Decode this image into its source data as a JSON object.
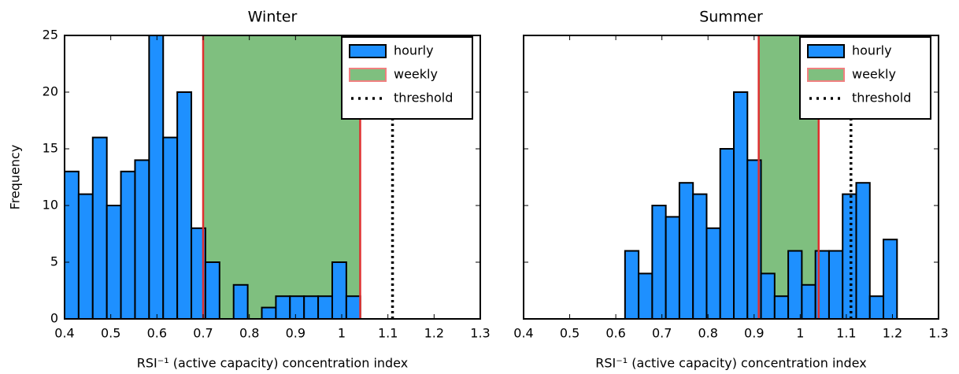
{
  "chart_data": [
    {
      "type": "histogram",
      "title": "Winter",
      "xlabel": "RSI⁻¹ (active capacity) concentration index",
      "ylabel": "Frequency",
      "bins": [
        0.4,
        0.4305,
        0.461,
        0.4915,
        0.522,
        0.5525,
        0.583,
        0.6135,
        0.644,
        0.6745,
        0.705,
        0.7355,
        0.766,
        0.7965,
        0.827,
        0.8575,
        0.888,
        0.9185,
        0.949,
        0.9795,
        1.01,
        1.0405
      ],
      "series": [
        {
          "name": "hourly",
          "color": "#1e90ff",
          "values": [
            13,
            11,
            16,
            10,
            13,
            14,
            25,
            16,
            20,
            8,
            5,
            0,
            3,
            0,
            1,
            2,
            2,
            2,
            2,
            5,
            2
          ]
        }
      ],
      "weekly": {
        "name": "weekly",
        "range": [
          0.7,
          1.04
        ],
        "color": "#7fbf7f",
        "edge_color": "#e03030"
      },
      "threshold": {
        "name": "threshold",
        "value": 1.11
      },
      "xlim": [
        0.4,
        1.3
      ],
      "xticks": [
        0.4,
        0.5,
        0.6,
        0.7,
        0.8,
        0.9,
        1.0,
        1.1,
        1.2,
        1.3
      ],
      "ylim": [
        0,
        25
      ],
      "yticks": [
        0,
        5,
        10,
        15,
        20,
        25
      ],
      "ytick_labels": true,
      "legend": "upper right"
    },
    {
      "type": "histogram",
      "title": "Summer",
      "xlabel": "RSI⁻¹ (active capacity) concentration index",
      "bins": [
        0.62,
        0.6495,
        0.679,
        0.7085,
        0.738,
        0.7675,
        0.797,
        0.8265,
        0.856,
        0.8855,
        0.915,
        0.9445,
        0.974,
        1.0035,
        1.033,
        1.0625,
        1.092,
        1.1215,
        1.151,
        1.1805,
        1.21
      ],
      "series": [
        {
          "name": "hourly",
          "color": "#1e90ff",
          "values": [
            6,
            4,
            10,
            9,
            12,
            11,
            8,
            15,
            20,
            14,
            4,
            2,
            6,
            3,
            6,
            6,
            11,
            12,
            2,
            7
          ]
        }
      ],
      "weekly": {
        "name": "weekly",
        "range": [
          0.91,
          1.04
        ],
        "color": "#7fbf7f",
        "edge_color": "#e03030"
      },
      "threshold": {
        "name": "threshold",
        "value": 1.11
      },
      "xlim": [
        0.4,
        1.3
      ],
      "xticks": [
        0.4,
        0.5,
        0.6,
        0.7,
        0.8,
        0.9,
        1.0,
        1.1,
        1.2,
        1.3
      ],
      "ylim": [
        0,
        25
      ],
      "yticks": [
        0,
        5,
        10,
        15,
        20,
        25
      ],
      "ytick_labels": false,
      "legend": "upper right"
    }
  ]
}
